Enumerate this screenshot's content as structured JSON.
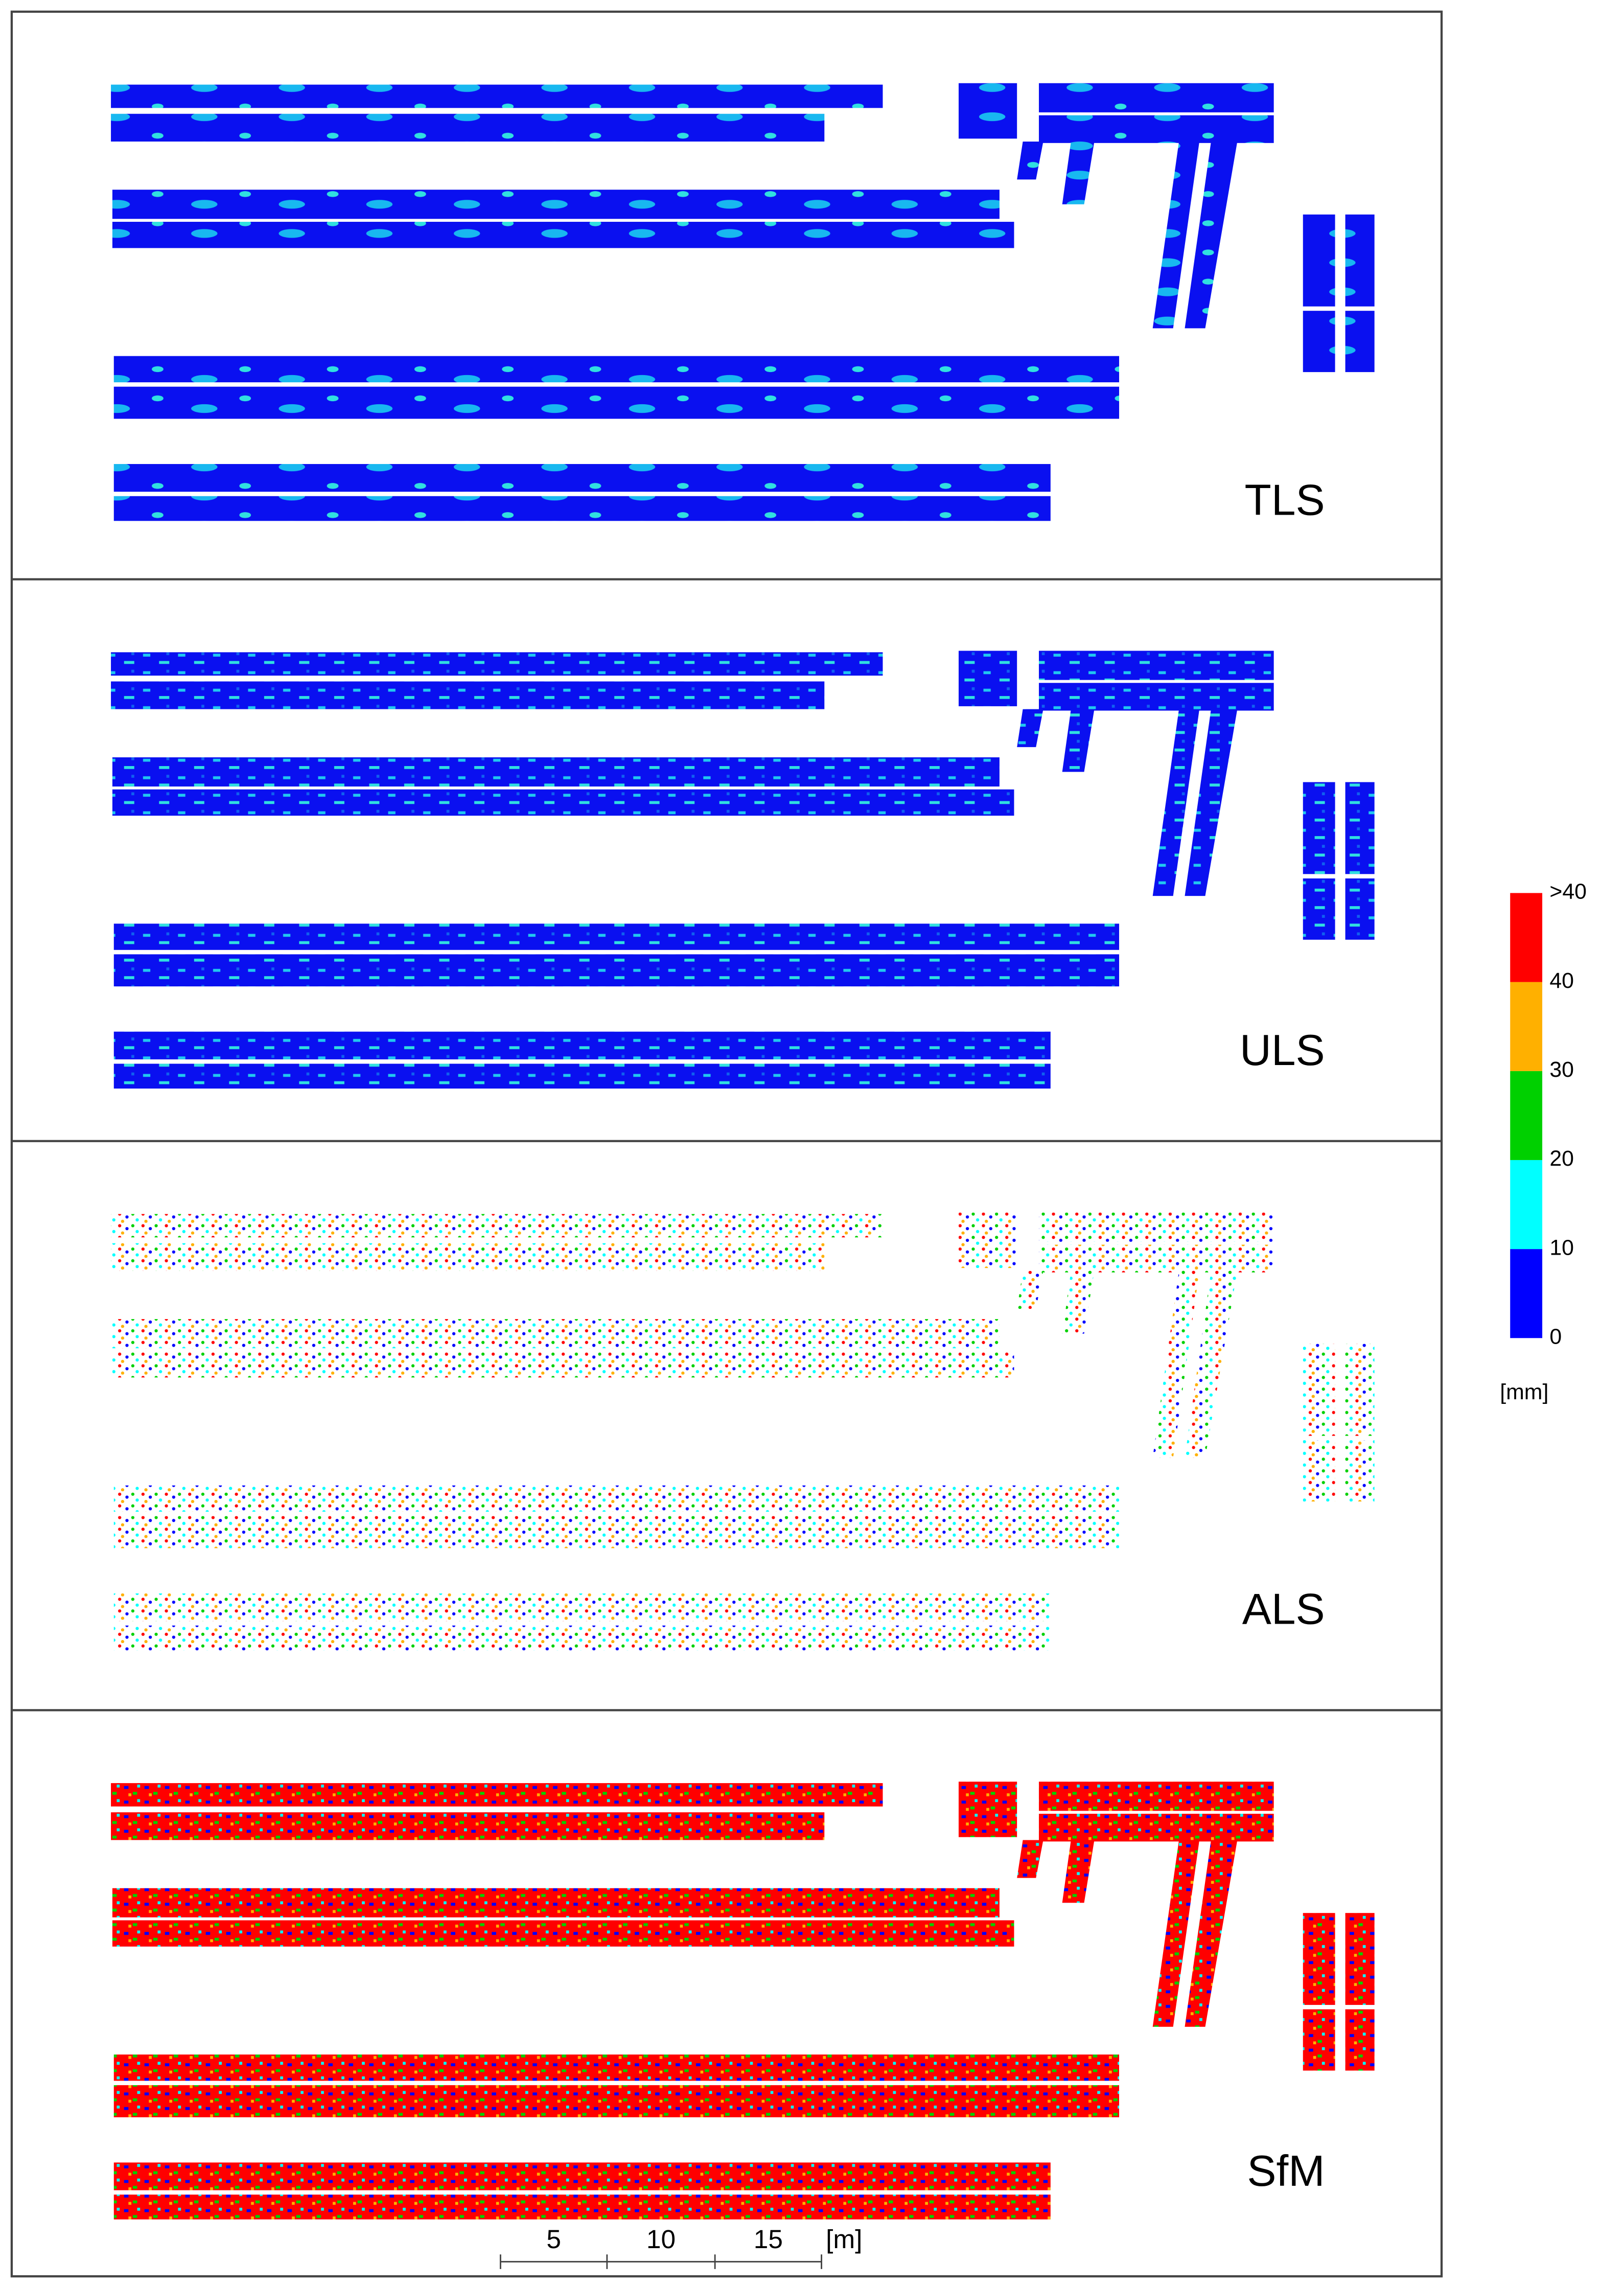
{
  "panels": [
    {
      "label": "TLS"
    },
    {
      "label": "ULS"
    },
    {
      "label": "ALS"
    },
    {
      "label": "SfM"
    }
  ],
  "colorbar": {
    "unit": "[mm]",
    "labels": [
      "0",
      "10",
      "20",
      "30",
      "40",
      ">40"
    ],
    "colors": [
      "#0000ff",
      "#00ffff",
      "#00d000",
      "#ffb000",
      "#ff0000"
    ]
  },
  "scale_bar": {
    "labels": [
      "5",
      "10",
      "15"
    ],
    "unit": "[m]"
  }
}
